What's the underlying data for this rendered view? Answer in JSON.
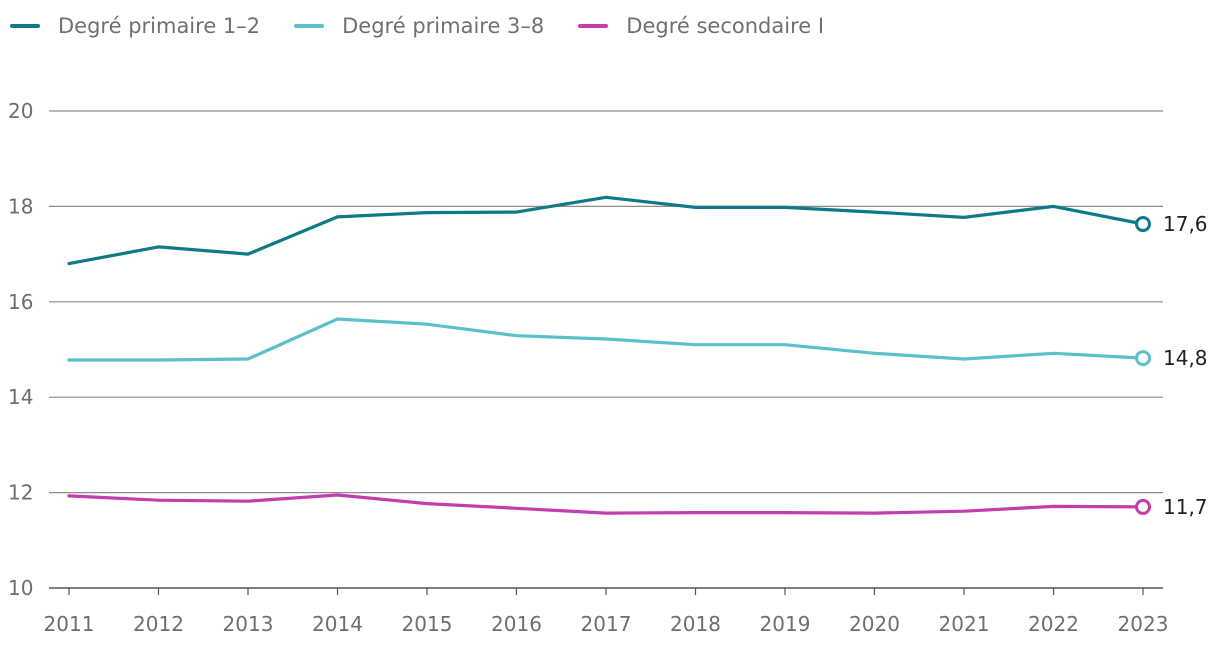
{
  "chart_data": {
    "type": "line",
    "title": "",
    "xlabel": "",
    "ylabel": "",
    "x": [
      2011,
      2012,
      2013,
      2014,
      2015,
      2016,
      2017,
      2018,
      2019,
      2020,
      2021,
      2022,
      2023
    ],
    "x_labels": [
      "2011",
      "2012",
      "2013",
      "2014",
      "2015",
      "2016",
      "2017",
      "2018",
      "2019",
      "2020",
      "2021",
      "2022",
      "2023"
    ],
    "ylim": [
      10,
      20
    ],
    "y_ticks": [
      10,
      12,
      14,
      16,
      18,
      20
    ],
    "y_tick_labels": [
      "10",
      "12",
      "14",
      "16",
      "18",
      "20"
    ],
    "grid": true,
    "legend_position": "top-left",
    "series": [
      {
        "name": "Degré primaire 1–2",
        "color": "#0f7a87",
        "values": [
          16.8,
          17.15,
          17.0,
          17.78,
          17.87,
          17.88,
          18.19,
          17.98,
          17.98,
          17.88,
          17.77,
          18.0,
          17.63
        ],
        "end_label": "17,6"
      },
      {
        "name": "Degré primaire 3–8",
        "color": "#5bc0cc",
        "values": [
          14.78,
          14.78,
          14.8,
          15.64,
          15.53,
          15.29,
          15.22,
          15.1,
          15.1,
          14.92,
          14.8,
          14.92,
          14.82
        ],
        "end_label": "14,8"
      },
      {
        "name": "Degré secondaire I",
        "color": "#c43dab",
        "values": [
          11.93,
          11.84,
          11.82,
          11.95,
          11.77,
          11.67,
          11.57,
          11.58,
          11.58,
          11.57,
          11.61,
          11.71,
          11.7
        ],
        "end_label": "11,7"
      }
    ]
  }
}
